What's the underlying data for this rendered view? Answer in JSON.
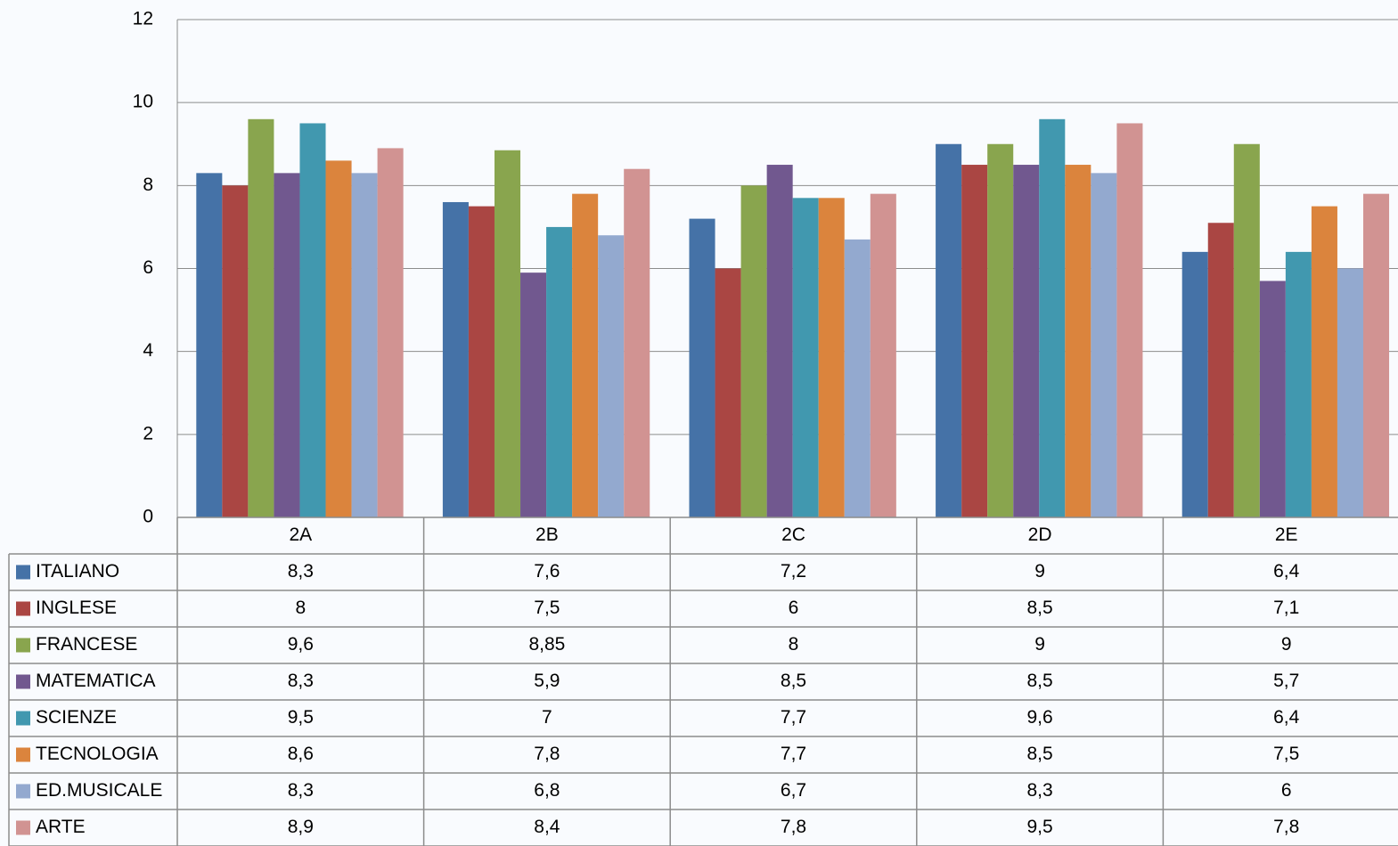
{
  "chart_data": {
    "type": "bar",
    "categories": [
      "2A",
      "2B",
      "2C",
      "2D",
      "2E"
    ],
    "series": [
      {
        "name": "ITALIANO",
        "color": "#4572a7",
        "values": [
          8.3,
          7.6,
          7.2,
          9,
          6.4
        ],
        "value_labels": [
          "8,3",
          "7,6",
          "7,2",
          "9",
          "6,4"
        ]
      },
      {
        "name": "INGLESE",
        "color": "#aa4643",
        "values": [
          8,
          7.5,
          6,
          8.5,
          7.1
        ],
        "value_labels": [
          "8",
          "7,5",
          "6",
          "8,5",
          "7,1"
        ]
      },
      {
        "name": "FRANCESE",
        "color": "#89a54e",
        "values": [
          9.6,
          8.85,
          8,
          9,
          9
        ],
        "value_labels": [
          "9,6",
          "8,85",
          "8",
          "9",
          "9"
        ]
      },
      {
        "name": "MATEMATICA",
        "color": "#71588f",
        "values": [
          8.3,
          5.9,
          8.5,
          8.5,
          5.7
        ],
        "value_labels": [
          "8,3",
          "5,9",
          "8,5",
          "8,5",
          "5,7"
        ]
      },
      {
        "name": "SCIENZE",
        "color": "#4198af",
        "values": [
          9.5,
          7,
          7.7,
          9.6,
          6.4
        ],
        "value_labels": [
          "9,5",
          "7",
          "7,7",
          "9,6",
          "6,4"
        ]
      },
      {
        "name": "TECNOLOGIA",
        "color": "#db843d",
        "values": [
          8.6,
          7.8,
          7.7,
          8.5,
          7.5
        ],
        "value_labels": [
          "8,6",
          "7,8",
          "7,7",
          "8,5",
          "7,5"
        ]
      },
      {
        "name": "ED.MUSICALE",
        "color": "#93a9cf",
        "values": [
          8.3,
          6.8,
          6.7,
          8.3,
          6
        ],
        "value_labels": [
          "8,3",
          "6,8",
          "6,7",
          "8,3",
          "6"
        ]
      },
      {
        "name": "ARTE",
        "color": "#d19392",
        "values": [
          8.9,
          8.4,
          7.8,
          9.5,
          7.8
        ],
        "value_labels": [
          "8,9",
          "8,4",
          "7,8",
          "9,5",
          "7,8"
        ]
      }
    ],
    "ylim": [
      0,
      12
    ],
    "yticks": [
      0,
      2,
      4,
      6,
      8,
      10,
      12
    ],
    "grid": true
  }
}
